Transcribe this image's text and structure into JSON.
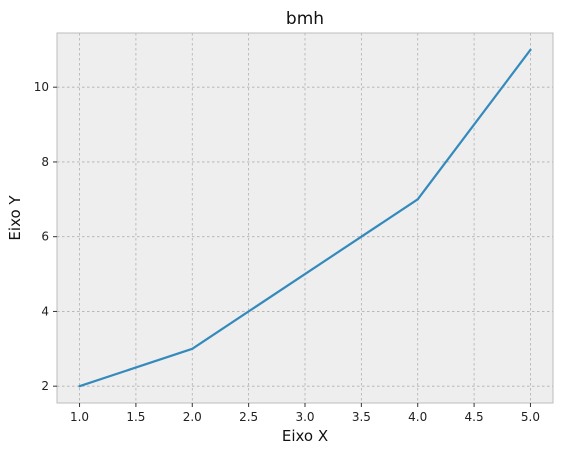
{
  "chart_data": {
    "type": "line",
    "title": "bmh",
    "xlabel": "Eixo X",
    "ylabel": "Eixo Y",
    "x": [
      1,
      2,
      4,
      5
    ],
    "series": [
      {
        "values": [
          2,
          3,
          7,
          11
        ],
        "color": "#348ABD"
      }
    ],
    "xlim": [
      0.8,
      5.2
    ],
    "ylim": [
      1.55,
      11.45
    ],
    "xticks": [
      "1.0",
      "1.5",
      "2.0",
      "2.5",
      "3.0",
      "3.5",
      "4.0",
      "4.5",
      "5.0"
    ],
    "yticks": [
      "2",
      "4",
      "6",
      "8",
      "10"
    ],
    "grid": true,
    "style": {
      "plot_background": "#eeeeee",
      "grid_color": "#b0b0b0",
      "frame_color": "#bcbcbc"
    }
  }
}
